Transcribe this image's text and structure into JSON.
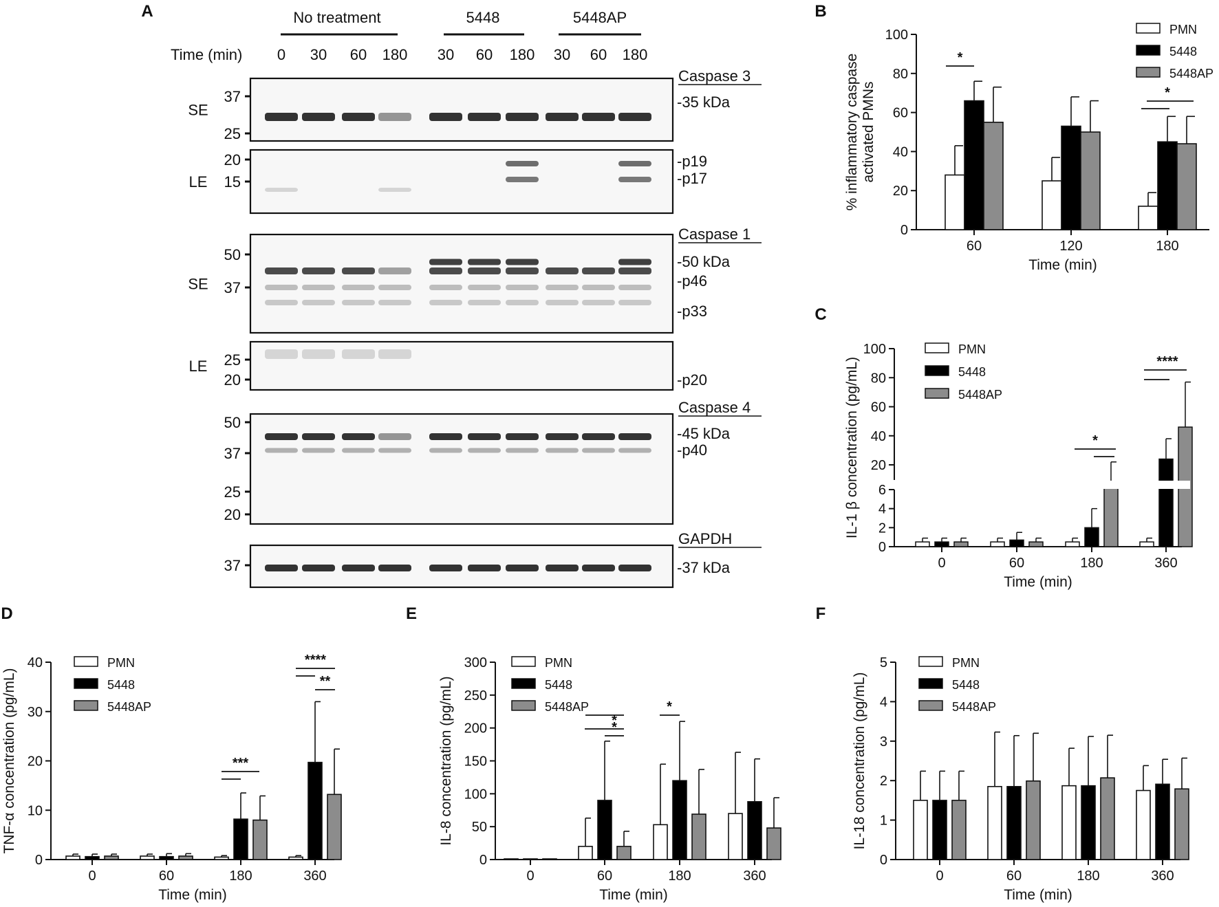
{
  "panel_labels": {
    "a": "A",
    "b": "B",
    "c": "C",
    "d": "D",
    "e": "E",
    "f": "F"
  },
  "blot": {
    "groups": [
      "No treatment",
      "5448",
      "5448AP"
    ],
    "time_label": "Time (min)",
    "lanes": [
      "0",
      "30",
      "60",
      "180",
      "30",
      "60",
      "180",
      "30",
      "60",
      "180"
    ],
    "rows": [
      {
        "label": "SE",
        "markers": [
          "37",
          "25"
        ],
        "title": "Caspase 3",
        "bands": [
          "-35 kDa"
        ]
      },
      {
        "label": "LE",
        "markers": [
          "20",
          "15"
        ],
        "title": "",
        "bands": [
          "-p19",
          "-p17"
        ]
      },
      {
        "label": "SE",
        "markers": [
          "50",
          "37"
        ],
        "title": "Caspase 1",
        "bands": [
          "-50 kDa",
          "-p46",
          "-p33"
        ]
      },
      {
        "label": "LE",
        "markers": [
          "25",
          "20"
        ],
        "title": "",
        "bands": [
          "-p20"
        ]
      },
      {
        "label": "",
        "markers": [
          "50",
          "37",
          "25",
          "20"
        ],
        "title": "Caspase 4",
        "bands": [
          "-45 kDa",
          "-p40"
        ]
      },
      {
        "label": "",
        "markers": [
          "37"
        ],
        "title": "GAPDH",
        "bands": [
          "-37 kDa"
        ]
      }
    ]
  },
  "legend": [
    "PMN",
    "5448",
    "5448AP"
  ],
  "colors": {
    "PMN": "#ffffff",
    "5448": "#000000",
    "5448AP": "#8c8c8c"
  },
  "chart_data": [
    {
      "panel": "B",
      "type": "bar",
      "xlabel": "Time (min)",
      "ylabel": "% inflammatory caspase activated PMNs",
      "categories": [
        "60",
        "120",
        "180"
      ],
      "ylim": [
        0,
        100
      ],
      "yticks": [
        "0",
        "20",
        "40",
        "60",
        "80",
        "100"
      ],
      "series": [
        {
          "name": "PMN",
          "values": [
            28,
            25,
            12
          ],
          "err": [
            15,
            12,
            7
          ]
        },
        {
          "name": "5448",
          "values": [
            66,
            53,
            45
          ],
          "err": [
            10,
            15,
            13
          ]
        },
        {
          "name": "5448AP",
          "values": [
            55,
            50,
            44
          ],
          "err": [
            18,
            16,
            14
          ]
        }
      ],
      "significance": [
        "*",
        "*"
      ]
    },
    {
      "panel": "C",
      "type": "bar",
      "xlabel": "Time (min)",
      "ylabel": "IL-1 β concentration (pg/mL)",
      "categories": [
        "0",
        "60",
        "180",
        "360"
      ],
      "ylim": [
        0,
        100
      ],
      "axis_break": [
        6,
        20
      ],
      "yticks_low": [
        "0",
        "2",
        "4",
        "6"
      ],
      "yticks_high": [
        "20",
        "40",
        "60",
        "80",
        "100"
      ],
      "series": [
        {
          "name": "PMN",
          "values": [
            0.5,
            0.5,
            0.5,
            0.5
          ],
          "err": [
            0.4,
            0.4,
            0.4,
            0.4
          ]
        },
        {
          "name": "5448",
          "values": [
            0.5,
            0.7,
            2.0,
            24
          ],
          "err": [
            0.4,
            0.8,
            2.0,
            14
          ]
        },
        {
          "name": "5448AP",
          "values": [
            0.5,
            0.5,
            12,
            46
          ],
          "err": [
            0.4,
            0.4,
            10,
            31
          ]
        }
      ],
      "significance": [
        "*",
        "****"
      ]
    },
    {
      "panel": "D",
      "type": "bar",
      "xlabel": "Time (min)",
      "ylabel": "TNF-α concentration (pg/mL)",
      "categories": [
        "0",
        "60",
        "180",
        "360"
      ],
      "ylim": [
        0,
        40
      ],
      "yticks": [
        "0",
        "10",
        "20",
        "30",
        "40"
      ],
      "series": [
        {
          "name": "PMN",
          "values": [
            0.7,
            0.7,
            0.5,
            0.5
          ],
          "err": [
            0.4,
            0.4,
            0.3,
            0.3
          ]
        },
        {
          "name": "5448",
          "values": [
            0.6,
            0.6,
            8.2,
            19.7
          ],
          "err": [
            0.5,
            0.6,
            5.3,
            12.3
          ]
        },
        {
          "name": "5448AP",
          "values": [
            0.7,
            0.7,
            8.0,
            13.2
          ],
          "err": [
            0.4,
            0.5,
            4.9,
            9.2
          ]
        }
      ],
      "significance": [
        "***",
        "****",
        "**"
      ]
    },
    {
      "panel": "E",
      "type": "bar",
      "xlabel": "Time (min)",
      "ylabel": "IL-8 concentration (pg/mL)",
      "categories": [
        "0",
        "60",
        "180",
        "360"
      ],
      "ylim": [
        0,
        300
      ],
      "yticks": [
        "0",
        "50",
        "100",
        "150",
        "200",
        "250",
        "300"
      ],
      "series": [
        {
          "name": "PMN",
          "values": [
            0,
            20,
            53,
            70
          ],
          "err": [
            0,
            43,
            92,
            93
          ]
        },
        {
          "name": "5448",
          "values": [
            0,
            90,
            120,
            88
          ],
          "err": [
            0,
            90,
            90,
            65
          ]
        },
        {
          "name": "5448AP",
          "values": [
            0,
            20,
            69,
            48
          ],
          "err": [
            0,
            23,
            68,
            46
          ]
        }
      ],
      "significance": [
        "*",
        "*"
      ]
    },
    {
      "panel": "F",
      "type": "bar",
      "xlabel": "Time (min)",
      "ylabel": "IL-18 concentration (pg/mL)",
      "categories": [
        "0",
        "60",
        "180",
        "360"
      ],
      "ylim": [
        0,
        5
      ],
      "yticks": [
        "0",
        "1",
        "2",
        "3",
        "4",
        "5"
      ],
      "series": [
        {
          "name": "PMN",
          "values": [
            1.5,
            1.85,
            1.87,
            1.75
          ],
          "err": [
            0.74,
            1.38,
            0.95,
            0.63
          ]
        },
        {
          "name": "5448",
          "values": [
            1.5,
            1.85,
            1.87,
            1.91
          ],
          "err": [
            0.74,
            1.29,
            1.25,
            0.63
          ]
        },
        {
          "name": "5448AP",
          "values": [
            1.5,
            1.99,
            2.07,
            1.79
          ],
          "err": [
            0.74,
            1.21,
            1.08,
            0.78
          ]
        }
      ],
      "significance": []
    }
  ]
}
